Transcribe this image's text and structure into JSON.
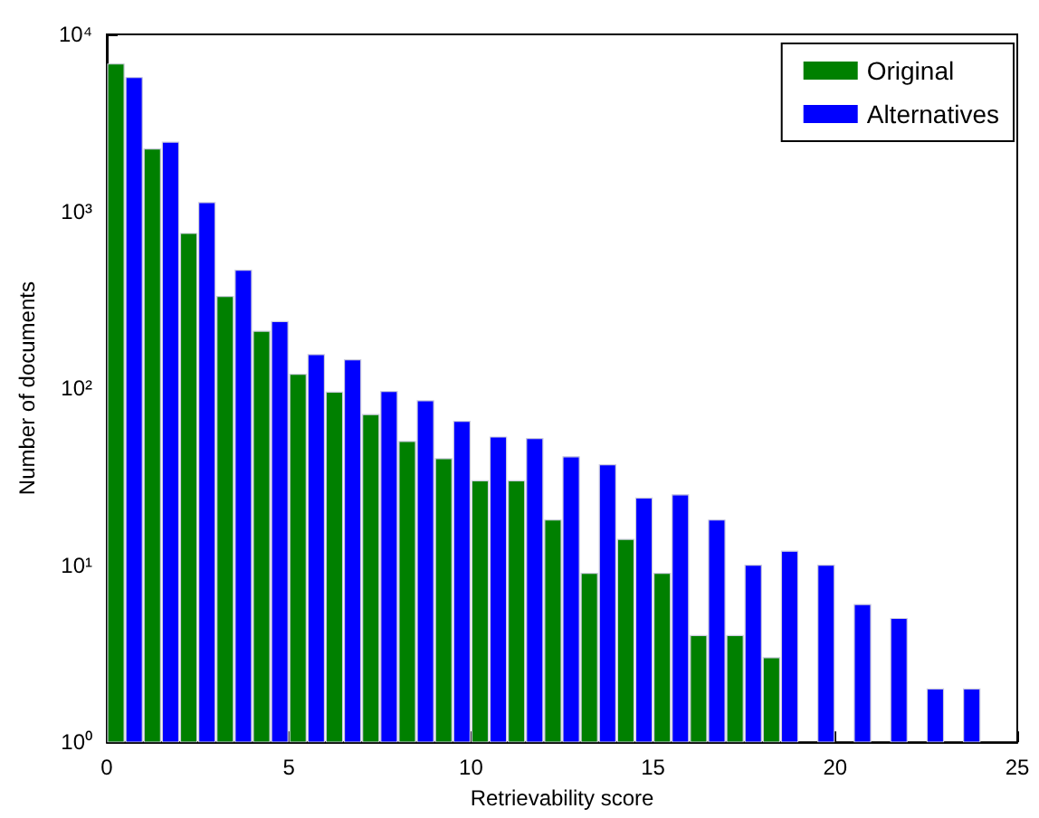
{
  "chart_data": {
    "type": "histogram",
    "xlabel": "Retrievability score",
    "ylabel": "Number of documents",
    "bins": [
      0,
      1,
      2,
      3,
      4,
      5,
      6,
      7,
      8,
      9,
      10,
      11,
      12,
      13,
      14,
      15,
      16,
      17,
      18,
      19,
      20,
      21,
      22,
      23,
      24
    ],
    "series": [
      {
        "name": "Original",
        "color": "#008000",
        "values": [
          6800,
          2250,
          750,
          330,
          210,
          120,
          95,
          71,
          50,
          40,
          30,
          30,
          18,
          9,
          14,
          9,
          4,
          4,
          3,
          null,
          null,
          null,
          null,
          null
        ]
      },
      {
        "name": "Alternatives",
        "color": "#0000ff",
        "values": [
          5700,
          2460,
          1120,
          465,
          238,
          155,
          145,
          96,
          85,
          65,
          53,
          52,
          41,
          37,
          24,
          25,
          18,
          10,
          12,
          10,
          6,
          5,
          2,
          2
        ]
      }
    ],
    "xlim": [
      0,
      25
    ],
    "xticks": [
      0,
      5,
      10,
      15,
      20,
      25
    ],
    "ylim": [
      1,
      10000
    ],
    "yticks": [
      {
        "value": 1,
        "label": "10⁰"
      },
      {
        "value": 10,
        "label": "10¹"
      },
      {
        "value": 100,
        "label": "10²"
      },
      {
        "value": 1000,
        "label": "10³"
      },
      {
        "value": 10000,
        "label": "10⁴"
      }
    ],
    "log": "y",
    "grid": false,
    "legend": "top right"
  }
}
